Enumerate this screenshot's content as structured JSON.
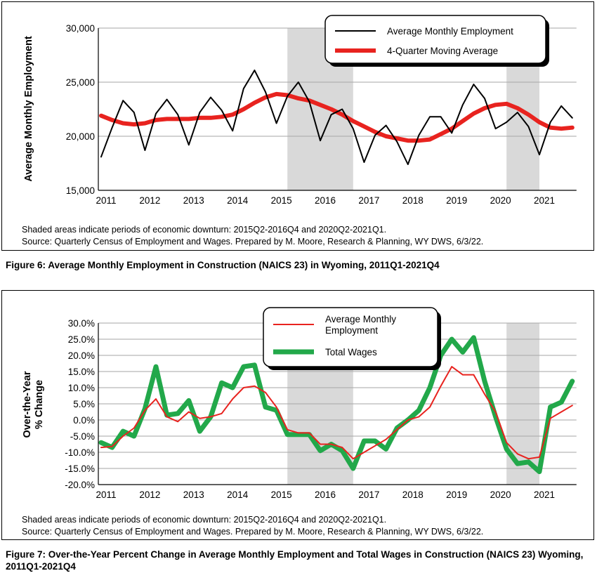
{
  "figures": [
    {
      "caption": "Figure 6: Average Monthly Employment in Construction (NAICS 23) in Wyoming, 2011Q1-2021Q4",
      "note1": "Shaded areas indicate periods of economic downturn: 2015Q2-2016Q4 and 2020Q2-2021Q1.",
      "note2": "Source: Quarterly Census of Employment and Wages. Prepared by M. Moore, Research & Planning, WY DWS, 6/3/22."
    },
    {
      "caption": "Figure 7: Over-the-Year Percent Change in Average Monthly Employment and Total Wages in Construction (NAICS 23) Wyoming, 2011Q1-2021Q4",
      "note1": "Shaded areas indicate periods of economic downturn: 2015Q2-2016Q4 and 2020Q2-2021Q1.",
      "note2": "Source: Quarterly Census of Employment and Wages. Prepared by M. Moore, Research & Planning, WY DWS, 6/3/22."
    }
  ],
  "chart_data": [
    {
      "type": "line",
      "ylabel": "Average Monthly Employment",
      "ylim": [
        15000,
        30000
      ],
      "yticks": [
        15000,
        20000,
        25000,
        30000
      ],
      "ytick_labels": [
        "15,000",
        "20,000",
        "25,000",
        "30,000"
      ],
      "xticks": [
        "2011",
        "2012",
        "2013",
        "2014",
        "2015",
        "2016",
        "2017",
        "2018",
        "2019",
        "2020",
        "2021"
      ],
      "x_start": "2011Q1",
      "grid": "horizontal",
      "legend_position": "top-right",
      "shaded_periods": [
        [
          "2015Q2",
          "2016Q4"
        ],
        [
          "2020Q2",
          "2021Q1"
        ]
      ],
      "series": [
        {
          "name": "Average Monthly Employment",
          "color": "#000000",
          "values": [
            18100,
            20800,
            23300,
            22200,
            18700,
            22100,
            23400,
            22000,
            19200,
            22200,
            23600,
            22400,
            20500,
            24400,
            26100,
            24100,
            21200,
            23700,
            25000,
            23200,
            19600,
            22000,
            22500,
            20700,
            17600,
            20100,
            21000,
            19500,
            17400,
            20100,
            21800,
            21800,
            20300,
            22900,
            24800,
            23500,
            20700,
            21300,
            22200,
            20900,
            18300,
            21300,
            22800,
            21700
          ]
        },
        {
          "name": "4-Quarter Moving Average",
          "color": "#e8231f",
          "values": [
            21900,
            21500,
            21200,
            21100,
            21200,
            21500,
            21600,
            21600,
            21600,
            21700,
            21700,
            21800,
            22000,
            22500,
            23100,
            23600,
            23900,
            23800,
            23500,
            23300,
            22900,
            22500,
            22000,
            21400,
            20900,
            20400,
            20000,
            19800,
            19600,
            19600,
            19700,
            20200,
            20700,
            21400,
            22100,
            22600,
            22900,
            23000,
            22600,
            22000,
            21300,
            20800,
            20700,
            20800
          ]
        }
      ]
    },
    {
      "type": "line",
      "ylabel": "Over-the-Year % Change",
      "ylim": [
        -20,
        30
      ],
      "yticks": [
        -20,
        -15,
        -10,
        -5,
        0,
        5,
        10,
        15,
        20,
        25,
        30
      ],
      "ytick_labels": [
        "-20.0%",
        "-15.0%",
        "-10.0%",
        "-5.0%",
        "0.0%",
        "5.0%",
        "10.0%",
        "15.0%",
        "20.0%",
        "25.0%",
        "30.0%"
      ],
      "xticks": [
        "2011",
        "2012",
        "2013",
        "2014",
        "2015",
        "2016",
        "2017",
        "2018",
        "2019",
        "2020",
        "2021"
      ],
      "x_start": "2011Q1",
      "grid": "horizontal",
      "legend_position": "top-right",
      "shaded_periods": [
        [
          "2015Q2",
          "2016Q4"
        ],
        [
          "2020Q2",
          "2021Q1"
        ]
      ],
      "series": [
        {
          "name": "Average Monthly Employment",
          "color": "#e8231f",
          "values": [
            -8.5,
            -8.2,
            -5.0,
            -2.5,
            3.0,
            6.5,
            1.0,
            -0.5,
            2.5,
            0.5,
            1.0,
            2.0,
            6.5,
            10.0,
            10.5,
            8.5,
            4.0,
            -3.0,
            -4.0,
            -4.0,
            -7.5,
            -7.5,
            -8.5,
            -12.0,
            -10.0,
            -8.0,
            -6.0,
            -3.0,
            0.0,
            1.0,
            4.0,
            10.5,
            16.5,
            14.0,
            14.0,
            8.0,
            2.5,
            -7.0,
            -10.5,
            -12.0,
            -11.5,
            0.5,
            2.5,
            4.5
          ]
        },
        {
          "name": "Total Wages",
          "color": "#22a84a",
          "values": [
            -7.0,
            -8.5,
            -3.5,
            -5.0,
            3.5,
            16.5,
            1.5,
            2.0,
            6.0,
            -3.5,
            1.0,
            11.5,
            10.0,
            16.5,
            17.0,
            4.0,
            3.0,
            -4.5,
            -4.5,
            -4.5,
            -9.5,
            -7.5,
            -9.5,
            -15.0,
            -6.5,
            -6.5,
            -9.0,
            -2.5,
            0.0,
            3.0,
            10.0,
            20.0,
            25.0,
            21.0,
            25.5,
            12.0,
            1.0,
            -9.0,
            -13.5,
            -13.0,
            -16.0,
            4.0,
            5.5,
            12.0
          ]
        }
      ]
    }
  ]
}
